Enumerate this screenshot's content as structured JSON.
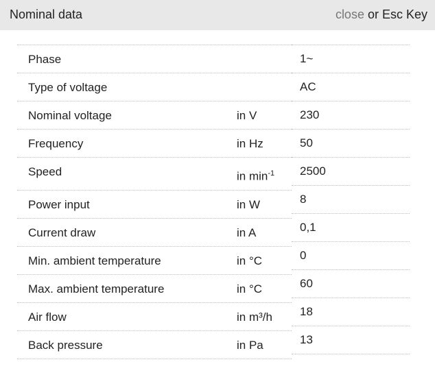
{
  "header": {
    "title": "Nominal data",
    "close_label": "close",
    "close_suffix": " or Esc Key"
  },
  "rows": [
    {
      "label": "Phase",
      "unit": "",
      "value": "1~"
    },
    {
      "label": "Type of voltage",
      "unit": "",
      "value": "AC"
    },
    {
      "label": "Nominal voltage",
      "unit": "in V",
      "value": "230"
    },
    {
      "label": "Frequency",
      "unit": "in Hz",
      "value": "50"
    },
    {
      "label": "Speed",
      "unit": "in min",
      "unit_sup": "-1",
      "value": "2500"
    },
    {
      "label": "Power input",
      "unit": "in W",
      "value": "8"
    },
    {
      "label": "Current draw",
      "unit": "in A",
      "value": "0,1"
    },
    {
      "label": "Min. ambient temperature",
      "unit": "in °C",
      "value": "0"
    },
    {
      "label": "Max. ambient temperature",
      "unit": "in °C",
      "value": "60"
    },
    {
      "label": "Air flow",
      "unit": "in m³/h",
      "value": "18"
    },
    {
      "label": "Back pressure",
      "unit": "in Pa",
      "value": "13"
    }
  ]
}
